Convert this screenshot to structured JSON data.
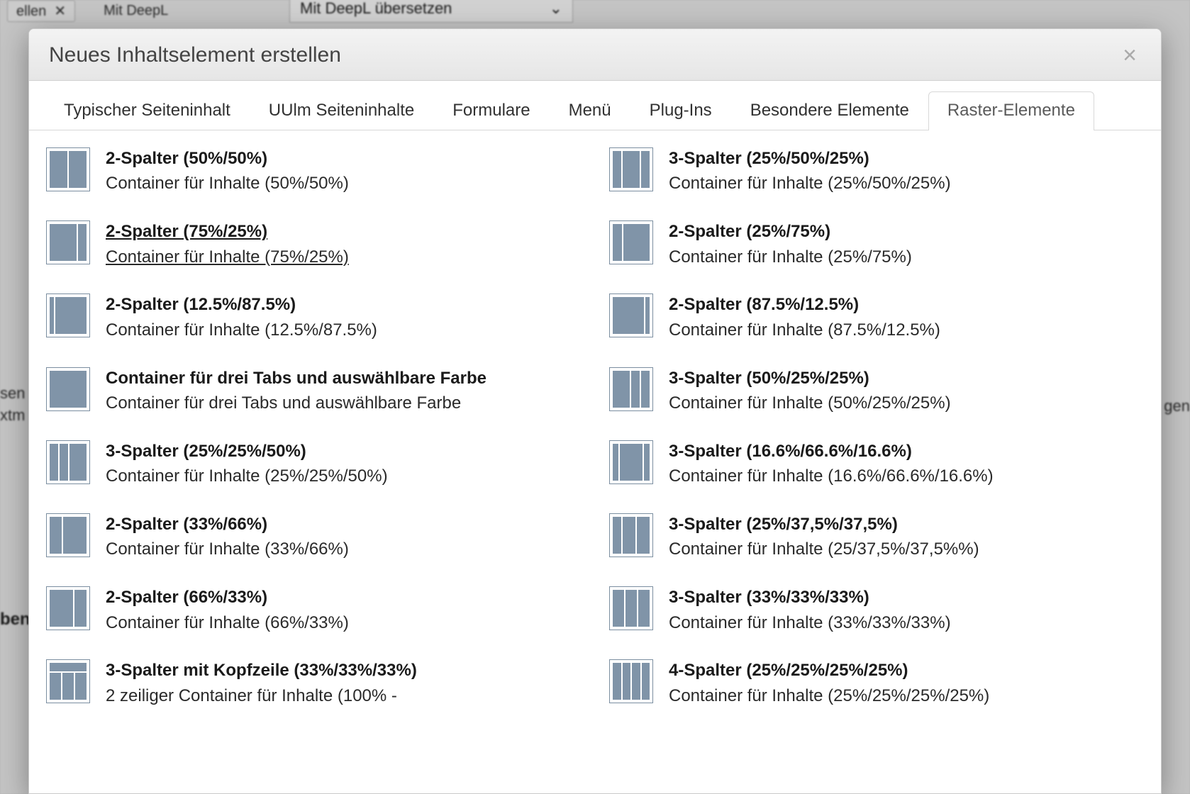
{
  "background": {
    "btn_left": "ellen",
    "top_text": "Mit DeepL",
    "dropdown_text": "Mit DeepL übersetzen",
    "side_left_line1": "sen",
    "side_left_line2": "xtm",
    "side_left_bold": "ben",
    "side_right": "gen"
  },
  "modal": {
    "title": "Neues Inhaltselement erstellen",
    "close_glyph": "×"
  },
  "tabs": [
    {
      "label": "Typischer Seiteninhalt",
      "active": false
    },
    {
      "label": "UUlm Seiteninhalte",
      "active": false
    },
    {
      "label": "Formulare",
      "active": false
    },
    {
      "label": "Menü",
      "active": false
    },
    {
      "label": "Plug-Ins",
      "active": false
    },
    {
      "label": "Besondere Elemente",
      "active": false
    },
    {
      "label": "Raster-Elemente",
      "active": true
    }
  ],
  "left_items": [
    {
      "title": "2-Spalter (50%/50%)",
      "desc": "Container für Inhalte (50%/50%)",
      "cols": [
        50,
        50
      ],
      "header": false,
      "hovered": false
    },
    {
      "title": "2-Spalter (75%/25%)",
      "desc": "Container für Inhalte (75%/25%)",
      "cols": [
        75,
        25
      ],
      "header": false,
      "hovered": true
    },
    {
      "title": "2-Spalter (12.5%/87.5%)",
      "desc": "Container für Inhalte (12.5%/87.5%)",
      "cols": [
        12.5,
        87.5
      ],
      "header": false,
      "hovered": false
    },
    {
      "title": "Container für drei Tabs und auswählbare Farbe",
      "desc": "Container für drei Tabs und auswählbare Farbe",
      "cols": [
        100
      ],
      "header": false,
      "hovered": false
    },
    {
      "title": "3-Spalter (25%/25%/50%)",
      "desc": "Container für Inhalte (25%/25%/50%)",
      "cols": [
        25,
        25,
        50
      ],
      "header": false,
      "hovered": false
    },
    {
      "title": "2-Spalter (33%/66%)",
      "desc": "Container für Inhalte (33%/66%)",
      "cols": [
        33,
        66
      ],
      "header": false,
      "hovered": false
    },
    {
      "title": "2-Spalter (66%/33%)",
      "desc": "Container für Inhalte (66%/33%)",
      "cols": [
        66,
        33
      ],
      "header": false,
      "hovered": false
    },
    {
      "title": "3-Spalter mit Kopfzeile (33%/33%/33%)",
      "desc": "2 zeiliger Container für Inhalte (100% -",
      "cols": [
        33,
        33,
        33
      ],
      "header": true,
      "hovered": false
    }
  ],
  "right_items": [
    {
      "title": "3-Spalter (25%/50%/25%)",
      "desc": "Container für Inhalte (25%/50%/25%)",
      "cols": [
        25,
        50,
        25
      ],
      "header": false,
      "hovered": false
    },
    {
      "title": "2-Spalter (25%/75%)",
      "desc": "Container für Inhalte (25%/75%)",
      "cols": [
        25,
        75
      ],
      "header": false,
      "hovered": false
    },
    {
      "title": "2-Spalter (87.5%/12.5%)",
      "desc": "Container für Inhalte (87.5%/12.5%)",
      "cols": [
        87.5,
        12.5
      ],
      "header": false,
      "hovered": false
    },
    {
      "title": "3-Spalter (50%/25%/25%)",
      "desc": "Container für Inhalte (50%/25%/25%)",
      "cols": [
        50,
        25,
        25
      ],
      "header": false,
      "hovered": false
    },
    {
      "title": "3-Spalter (16.6%/66.6%/16.6%)",
      "desc": "Container für Inhalte (16.6%/66.6%/16.6%)",
      "cols": [
        16.6,
        66.6,
        16.6
      ],
      "header": false,
      "hovered": false
    },
    {
      "title": "3-Spalter (25%/37,5%/37,5%)",
      "desc": "Container für Inhalte (25/37,5%/37,5%%)",
      "cols": [
        25,
        37.5,
        37.5
      ],
      "header": false,
      "hovered": false
    },
    {
      "title": "3-Spalter (33%/33%/33%)",
      "desc": "Container für Inhalte (33%/33%/33%)",
      "cols": [
        33,
        33,
        33
      ],
      "header": false,
      "hovered": false
    },
    {
      "title": "4-Spalter (25%/25%/25%/25%)",
      "desc": "Container für Inhalte (25%/25%/25%/25%)",
      "cols": [
        25,
        25,
        25,
        25
      ],
      "header": false,
      "hovered": false
    }
  ],
  "colors": {
    "thumb_fill": "#8094a8",
    "thumb_border": "#7b8ea0"
  }
}
